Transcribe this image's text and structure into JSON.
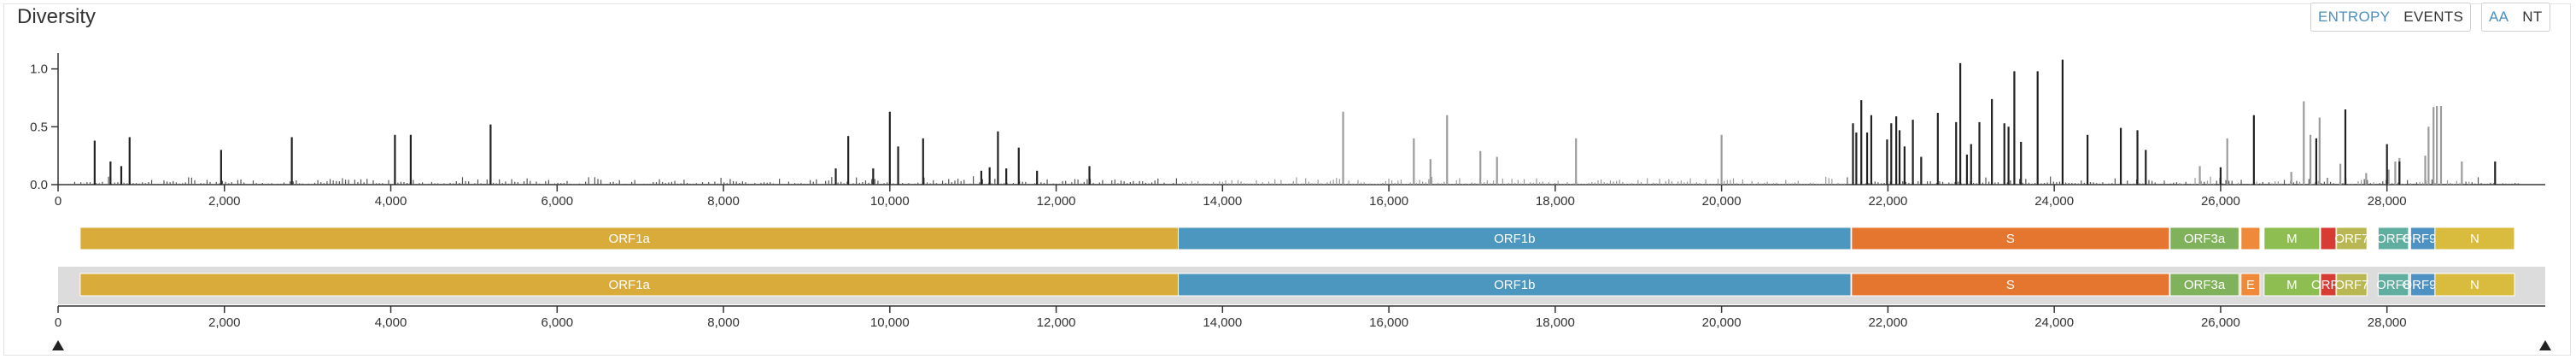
{
  "panel": {
    "title": "Diversity"
  },
  "toggles": {
    "metric": {
      "entropy": "ENTROPY",
      "events": "EVENTS",
      "active": "entropy"
    },
    "mutType": {
      "aa": "AA",
      "nt": "NT",
      "active": "aa"
    }
  },
  "colors": {
    "orf1a": "#d8ab3a",
    "orf1b": "#4c97bf",
    "s": "#e5762f",
    "orf3a": "#7fb25b",
    "e": "#ee8a3a",
    "m": "#8ebd52",
    "orf6": "#d83a34",
    "orf7": "#b9b751",
    "orf8": "#5fae9f",
    "orf9b": "#4d92c3",
    "n": "#d9bb3d",
    "bar_dark": "#222222",
    "bar_light": "#9b9b9b",
    "brush_bg": "#dcdcdc"
  },
  "chart_data": {
    "type": "bar",
    "title": "Diversity",
    "xlabel": "",
    "ylabel": "",
    "xlim": [
      0,
      29903
    ],
    "ylim": [
      0,
      1.3
    ],
    "y_ticks": [
      0.0,
      0.5,
      1.0
    ],
    "y_tick_labels": [
      "0.0",
      "0.5",
      "1.0"
    ],
    "x_ticks": [
      0,
      2000,
      4000,
      6000,
      8000,
      10000,
      12000,
      14000,
      16000,
      18000,
      20000,
      22000,
      24000,
      26000,
      28000
    ],
    "x_tick_labels": [
      "0",
      "2,000",
      "4,000",
      "6,000",
      "8,000",
      "10,000",
      "12,000",
      "14,000",
      "16,000",
      "18,000",
      "20,000",
      "22,000",
      "24,000",
      "26,000",
      "28,000"
    ],
    "series": [
      {
        "name": "entropy-orf1ab",
        "x": [
          440,
          630,
          760,
          860,
          1960,
          2810,
          4050,
          4240,
          5200,
          9350,
          9500,
          9800,
          10000,
          10100,
          10400,
          11100,
          11200,
          11300,
          11400,
          11550,
          11770,
          12400
        ],
        "values": [
          0.38,
          0.2,
          0.16,
          0.41,
          0.3,
          0.41,
          0.43,
          0.43,
          0.52,
          0.14,
          0.42,
          0.14,
          0.63,
          0.33,
          0.4,
          0.12,
          0.15,
          0.46,
          0.14,
          0.32,
          0.12,
          0.16
        ]
      },
      {
        "name": "entropy-light",
        "x": [
          15450,
          16300,
          16500,
          16700,
          17100,
          17300,
          18250,
          20000,
          25750,
          26080,
          26850,
          27000,
          27080,
          27190,
          27440,
          27750,
          28020,
          28100,
          28150,
          28460,
          28500,
          28560,
          28600,
          28650,
          28900
        ],
        "values": [
          0.63,
          0.4,
          0.22,
          0.6,
          0.29,
          0.24,
          0.4,
          0.43,
          0.16,
          0.4,
          0.11,
          0.72,
          0.43,
          0.58,
          0.18,
          0.1,
          0.13,
          0.2,
          0.23,
          0.25,
          0.5,
          0.67,
          0.68,
          0.68,
          0.2
        ]
      },
      {
        "name": "entropy-spike-region",
        "x": [
          21580,
          21620,
          21680,
          21750,
          21800,
          21990,
          22040,
          22100,
          22140,
          22200,
          22300,
          22400,
          22600,
          22820,
          22870,
          22950,
          23000,
          23100,
          23250,
          23400,
          23450,
          23520,
          23600,
          23800,
          24100,
          24400,
          24800,
          25000,
          25100,
          26000,
          26400,
          27150,
          27500,
          28000,
          28150,
          29300
        ],
        "values": [
          0.53,
          0.45,
          0.73,
          0.45,
          0.6,
          0.39,
          0.53,
          0.59,
          0.47,
          0.33,
          0.56,
          0.24,
          0.62,
          0.54,
          1.05,
          0.26,
          0.35,
          0.54,
          0.74,
          0.53,
          0.5,
          0.98,
          0.37,
          0.98,
          1.08,
          0.43,
          0.49,
          0.47,
          0.3,
          0.15,
          0.6,
          0.4,
          0.65,
          0.35,
          0.2,
          0.2
        ]
      }
    ],
    "genes": [
      {
        "name": "ORF1a",
        "start": 266,
        "end": 13468,
        "color": "#d8ab3a"
      },
      {
        "name": "ORF1b",
        "start": 13468,
        "end": 21555,
        "color": "#4c97bf"
      },
      {
        "name": "S",
        "start": 21563,
        "end": 25384,
        "color": "#e5762f"
      },
      {
        "name": "ORF3a",
        "start": 25393,
        "end": 26220,
        "color": "#7fb25b"
      },
      {
        "name": "E",
        "start": 26245,
        "end": 26472,
        "color": "#ee8a3a"
      },
      {
        "name": "M",
        "start": 26523,
        "end": 27191,
        "color": "#8ebd52"
      },
      {
        "name": "ORF6",
        "start": 27202,
        "end": 27387,
        "color": "#d83a34"
      },
      {
        "name": "ORF7a",
        "start": 27394,
        "end": 27759,
        "color": "#b9b751"
      },
      {
        "name": "ORF8",
        "start": 27894,
        "end": 28259,
        "color": "#5fae9f"
      },
      {
        "name": "ORF9b",
        "start": 28284,
        "end": 28577,
        "color": "#4d92c3"
      },
      {
        "name": "N",
        "start": 28577,
        "end": 29533,
        "color": "#d9bb3d"
      }
    ],
    "gene_labels_top": [
      "ORF1a",
      "ORF1b",
      "S",
      "ORF3a",
      "",
      "M",
      "",
      "ORF7",
      "ORF8",
      "ORF9b",
      "N"
    ],
    "gene_labels_bottom": [
      "ORF1a",
      "ORF1b",
      "S",
      "ORF3a",
      "E",
      "M",
      "ORF6",
      "ORF7",
      "ORF8",
      "ORF9b",
      "N"
    ]
  }
}
